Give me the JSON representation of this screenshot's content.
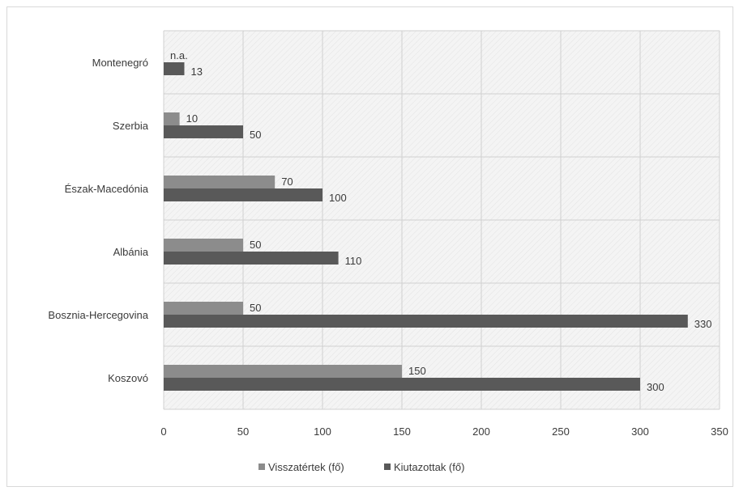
{
  "colors": {
    "visszatertek": "#8c8c8c",
    "kiutazottak": "#595959",
    "grid": "#d0d0d0",
    "plot_bg": "#f2f2f2",
    "text": "#3a3a3a"
  },
  "chart_data": {
    "type": "bar",
    "orientation": "horizontal",
    "title": "",
    "xlabel": "",
    "ylabel": "",
    "xlim": [
      0,
      350
    ],
    "xticks": [
      0,
      50,
      100,
      150,
      200,
      250,
      300,
      350
    ],
    "xtick_labels": [
      "0",
      "50",
      "100",
      "150",
      "200",
      "250",
      "300",
      "350"
    ],
    "grid": true,
    "legend_position": "bottom",
    "categories": [
      "Montenegró",
      "Szerbia",
      "Észak-Macedónia",
      "Albánia",
      "Bosznia-Hercegovina",
      "Koszovó"
    ],
    "series": [
      {
        "name": "Visszatértek (fő)",
        "values": [
          null,
          10,
          70,
          50,
          50,
          150
        ],
        "labels": [
          "n.a.",
          "10",
          "70",
          "50",
          "50",
          "150"
        ]
      },
      {
        "name": "Kiutazottak (fő)",
        "values": [
          13,
          50,
          100,
          110,
          330,
          300
        ],
        "labels": [
          "13",
          "50",
          "100",
          "110",
          "330",
          "300"
        ]
      }
    ]
  }
}
